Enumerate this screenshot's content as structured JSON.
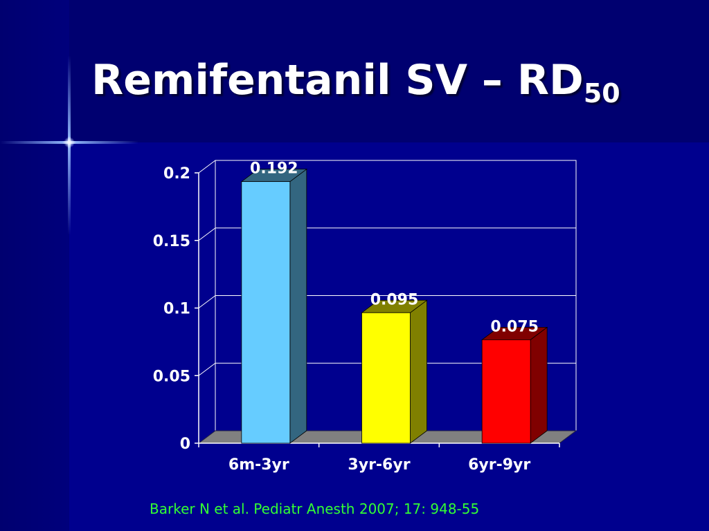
{
  "slide": {
    "title_main": "Remifentanil SV – RD",
    "title_subscript": "50",
    "citation": "Barker N et al. Pediatr Anesth 2007; 17: 948-55"
  },
  "colors": {
    "background": "#00008e",
    "accent_citation": "#33ff33"
  },
  "chart_data": {
    "type": "bar",
    "style": "3d-column",
    "categories": [
      "6m-3yr",
      "3yr-6yr",
      "6yr-9yr"
    ],
    "values": [
      0.192,
      0.095,
      0.075
    ],
    "data_labels": [
      "0.192",
      "0.095",
      "0.075"
    ],
    "bar_colors": [
      "#66ccff",
      "#ffff00",
      "#ff0000"
    ],
    "bar_side_colors": [
      "#336680",
      "#808000",
      "#800000"
    ],
    "ylim": [
      0,
      0.2
    ],
    "yticks": [
      0,
      0.05,
      0.1,
      0.15,
      0.2
    ],
    "ytick_labels": [
      "0",
      "0.05",
      "0.1",
      "0.15",
      "0.2"
    ],
    "grid": true,
    "legend": "none"
  }
}
